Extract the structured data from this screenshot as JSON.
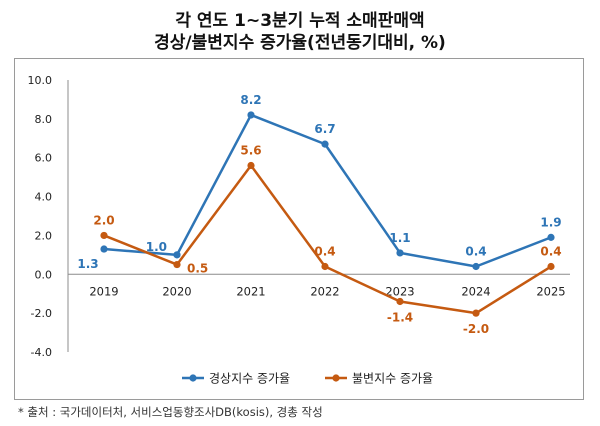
{
  "header": {
    "title_line1": "각 연도 1~3분기 누적 소매판매액",
    "title_line2": "경상/불변지수 증가율(전년동기대비, %)"
  },
  "source_note": "* 출처 : 국가데이터처, 서비스업동향조사DB(kosis), 경총 작성",
  "chart_data": {
    "type": "line",
    "x": [
      "2019",
      "2020",
      "2021",
      "2022",
      "2023",
      "2024",
      "2025"
    ],
    "ylim": [
      -4.0,
      10.0
    ],
    "yticks": [
      "10.0",
      "8.0",
      "6.0",
      "4.0",
      "2.0",
      "0.0",
      "-2.0",
      "-4.0"
    ],
    "grid": false,
    "legend": "bottom-center",
    "series": [
      {
        "name": "경상지수 증가율",
        "color": "#2e75b6",
        "values": [
          1.3,
          1.0,
          8.2,
          6.7,
          1.1,
          0.4,
          1.9
        ],
        "labels": [
          "1.3",
          "1.0",
          "8.2",
          "6.7",
          "1.1",
          "0.4",
          "1.9"
        ]
      },
      {
        "name": "불변지수 증가율",
        "color": "#c55a11",
        "values": [
          2.0,
          0.5,
          5.6,
          0.4,
          -1.4,
          -2.0,
          0.4
        ],
        "labels": [
          "2.0",
          "0.5",
          "5.6",
          "0.4",
          "-1.4",
          "-2.0",
          "0.4"
        ]
      }
    ]
  }
}
